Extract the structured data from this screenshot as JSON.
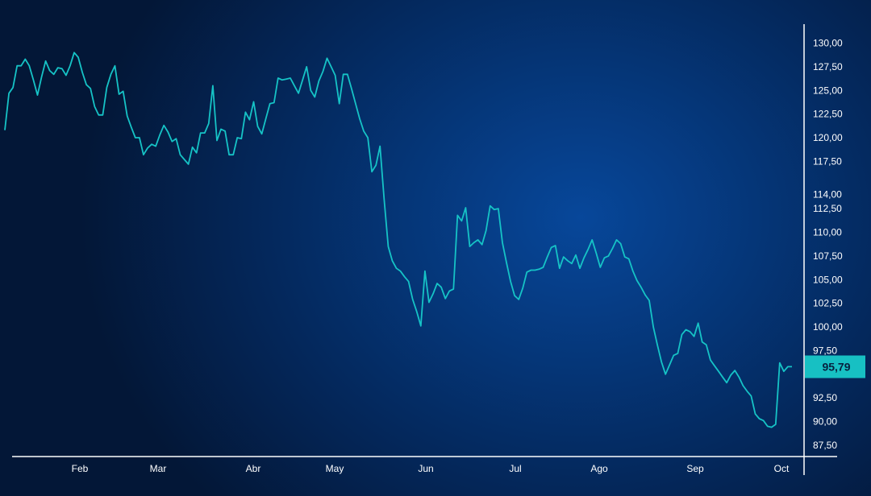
{
  "chart_data": {
    "type": "line",
    "title": "",
    "xlabel": "",
    "ylabel": "",
    "x_tick_labels": [
      "Feb",
      "Mar",
      "Abr",
      "May",
      "Jun",
      "Jul",
      "Ago",
      "Sep",
      "Oct"
    ],
    "y_tick_labels": [
      "130,00",
      "127,50",
      "125,00",
      "122,50",
      "120,00",
      "117,50",
      "114,00",
      "112,50",
      "110,00",
      "107,50",
      "105,00",
      "102,50",
      "100,00",
      "97,50",
      "92,50",
      "90,00",
      "87,50"
    ],
    "ylim": [
      86.3,
      132.0
    ],
    "grid": false,
    "y_axis_position": "right",
    "last_value": 95.79,
    "last_value_label": "95,79",
    "line_color": "#16c3c6",
    "badge_color": "#17c0c3",
    "series": [
      {
        "values": [
          120.8,
          124.7,
          125.3,
          127.6,
          127.6,
          128.3,
          127.6,
          126.1,
          124.5,
          126.4,
          128.1,
          127.1,
          126.7,
          127.4,
          127.3,
          126.6,
          127.6,
          129.0,
          128.5,
          126.9,
          125.6,
          125.2,
          123.3,
          122.4,
          122.4,
          125.3,
          126.7,
          127.6,
          124.6,
          124.9,
          122.3,
          121.1,
          120.0,
          120.0,
          118.2,
          118.9,
          119.3,
          119.1,
          120.3,
          121.3,
          120.6,
          119.6,
          119.9,
          118.2,
          117.7,
          117.2,
          119.0,
          118.4,
          120.5,
          120.5,
          121.5,
          125.5,
          119.7,
          120.9,
          120.7,
          118.2,
          118.2,
          120.0,
          119.9,
          122.7,
          121.9,
          123.8,
          121.2,
          120.4,
          122.0,
          123.6,
          123.7,
          126.3,
          126.1,
          126.2,
          126.3,
          125.5,
          124.7,
          126.1,
          127.5,
          125.0,
          124.3,
          126.0,
          127.0,
          128.4,
          127.5,
          126.6,
          123.6,
          126.7,
          126.7,
          125.2,
          123.6,
          122.0,
          120.7,
          120.0,
          116.4,
          117.1,
          119.1,
          113.5,
          108.5,
          107.0,
          106.2,
          105.9,
          105.3,
          104.8,
          102.9,
          101.6,
          100.1,
          105.9,
          102.6,
          103.5,
          104.6,
          104.2,
          103.0,
          103.8,
          104.0,
          111.8,
          111.2,
          112.6,
          108.5,
          108.9,
          109.2,
          108.7,
          110.2,
          112.8,
          112.4,
          112.5,
          108.9,
          106.8,
          104.8,
          103.3,
          102.9,
          104.1,
          105.8,
          106.0,
          106.0,
          106.1,
          106.3,
          107.4,
          108.4,
          108.6,
          106.2,
          107.4,
          107.0,
          106.7,
          107.6,
          106.2,
          107.3,
          108.2,
          109.2,
          107.8,
          106.3,
          107.3,
          107.5,
          108.3,
          109.2,
          108.8,
          107.4,
          107.2,
          105.9,
          104.9,
          104.2,
          103.4,
          102.8,
          100.0,
          98.1,
          96.3,
          95.0,
          96.0,
          97.0,
          97.2,
          99.2,
          99.7,
          99.5,
          99.0,
          100.4,
          98.4,
          98.1,
          96.5,
          95.9,
          95.3,
          94.7,
          94.1,
          94.9,
          95.4,
          94.7,
          93.8,
          93.2,
          92.7,
          90.8,
          90.3,
          90.1,
          89.5,
          89.4,
          89.7,
          96.2,
          95.3,
          95.8,
          95.8
        ]
      }
    ]
  }
}
